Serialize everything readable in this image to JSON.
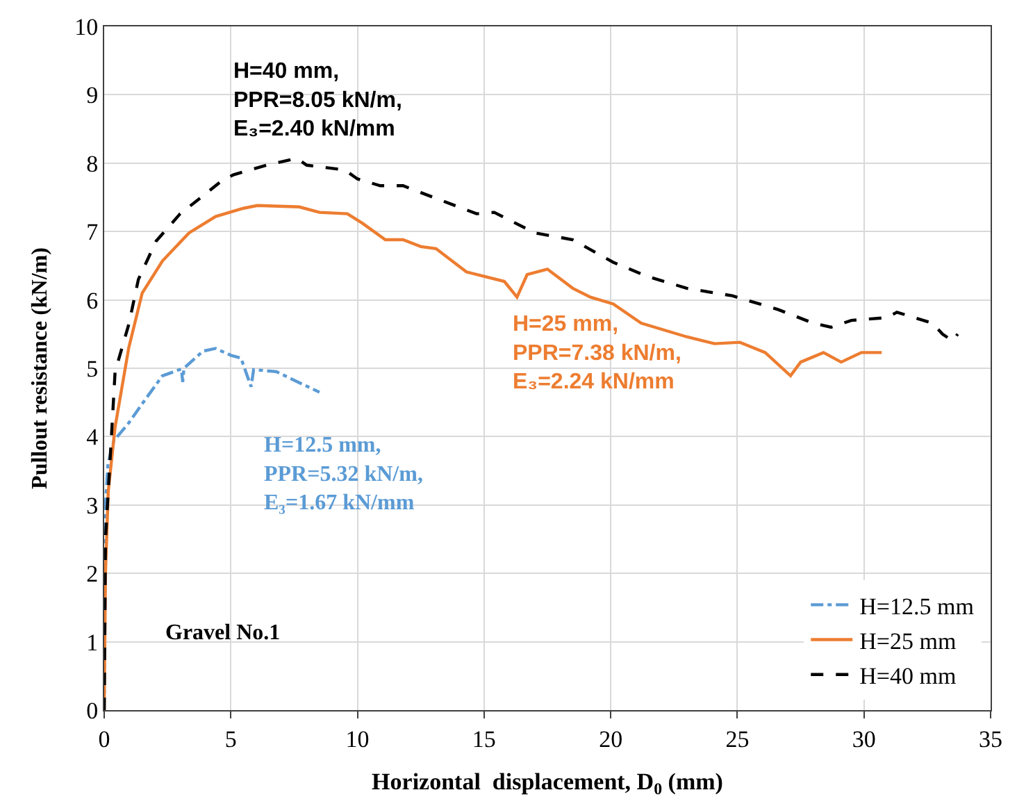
{
  "chart_data": {
    "type": "line",
    "xlabel": "Horizontal  displacement, D$_{0}$ (mm)",
    "ylabel": "Pullout resistance (kN/m)",
    "xlim": [
      0,
      35
    ],
    "xticks": [
      0,
      5,
      10,
      15,
      20,
      25,
      30,
      35
    ],
    "ylim": [
      0,
      10
    ],
    "yticks": [
      0,
      1,
      2,
      3,
      4,
      5,
      6,
      7,
      8,
      9,
      10
    ],
    "grid": true,
    "legend": "bottom right",
    "marker": "none",
    "annotations": [
      "H=40 mm,\nPPR=8.05 kN/m,\nE₃=2.40 kN/mm",
      "H=25 mm,\nPPR=7.38 kN/m,\nE₃=2.24 kN/mm",
      "H=12.5 mm,\nPPR=5.32 kN/m,\nE₃=1.67 kN/mm",
      "Gravel No.1"
    ],
    "series": [
      {
        "name": "H=12.5 mm",
        "color": "#5b9bd5",
        "line_style": "dashdot",
        "x": [
          0,
          0.05,
          0.15,
          0.38,
          0.97,
          1.5,
          2.3,
          3.05,
          3.1,
          3.15,
          3.9,
          4.4,
          5.0,
          5.4,
          5.8,
          5.9,
          6.8,
          7.7,
          8.5
        ],
        "values": [
          0,
          3.0,
          3.6,
          3.94,
          4.2,
          4.48,
          4.89,
          4.99,
          4.8,
          5.0,
          5.25,
          5.29,
          5.19,
          5.15,
          4.73,
          4.98,
          4.95,
          4.79,
          4.65
        ]
      },
      {
        "name": "H=25 mm",
        "color": "#ed7d31",
        "line_style": "solid",
        "x": [
          0,
          0.05,
          0.16,
          0.43,
          0.97,
          1.5,
          2.3,
          3.35,
          4.4,
          5.5,
          6.05,
          7.7,
          8.5,
          9.6,
          10.2,
          11.1,
          11.8,
          12.5,
          13.1,
          14.3,
          15.8,
          16.3,
          16.7,
          17.5,
          18.5,
          19.2,
          20.1,
          21.2,
          23.0,
          24.1,
          25.1,
          26.1,
          27.1,
          27.5,
          28.4,
          29.1,
          29.9,
          30.7
        ],
        "values": [
          0,
          2.0,
          3.2,
          4.14,
          5.3,
          6.1,
          6.57,
          6.98,
          7.22,
          7.34,
          7.38,
          7.36,
          7.28,
          7.26,
          7.12,
          6.88,
          6.88,
          6.78,
          6.75,
          6.41,
          6.27,
          6.04,
          6.37,
          6.45,
          6.17,
          6.04,
          5.94,
          5.66,
          5.46,
          5.36,
          5.38,
          5.23,
          4.89,
          5.09,
          5.23,
          5.09,
          5.23,
          5.23
        ]
      },
      {
        "name": "H=40 mm",
        "color": "#000000",
        "line_style": "dashed",
        "x": [
          0,
          0.05,
          0.27,
          0.43,
          0.97,
          1.35,
          2.05,
          3.0,
          3.9,
          4.6,
          5.1,
          6.4,
          7.6,
          8.0,
          9.5,
          10.0,
          10.9,
          11.8,
          12.5,
          14.7,
          15.4,
          17.0,
          18.5,
          20.1,
          21.4,
          23.0,
          24.8,
          26.6,
          28.0,
          28.7,
          29.5,
          30.9,
          31.3,
          32.7,
          33.1,
          33.5,
          33.7
        ],
        "values": [
          0,
          2.5,
          3.9,
          4.95,
          5.64,
          6.3,
          6.86,
          7.26,
          7.52,
          7.73,
          7.83,
          7.97,
          8.07,
          7.97,
          7.9,
          7.77,
          7.67,
          7.67,
          7.57,
          7.26,
          7.28,
          6.98,
          6.88,
          6.55,
          6.35,
          6.17,
          6.06,
          5.86,
          5.66,
          5.6,
          5.7,
          5.74,
          5.82,
          5.66,
          5.5,
          5.4,
          5.5
        ]
      }
    ]
  }
}
